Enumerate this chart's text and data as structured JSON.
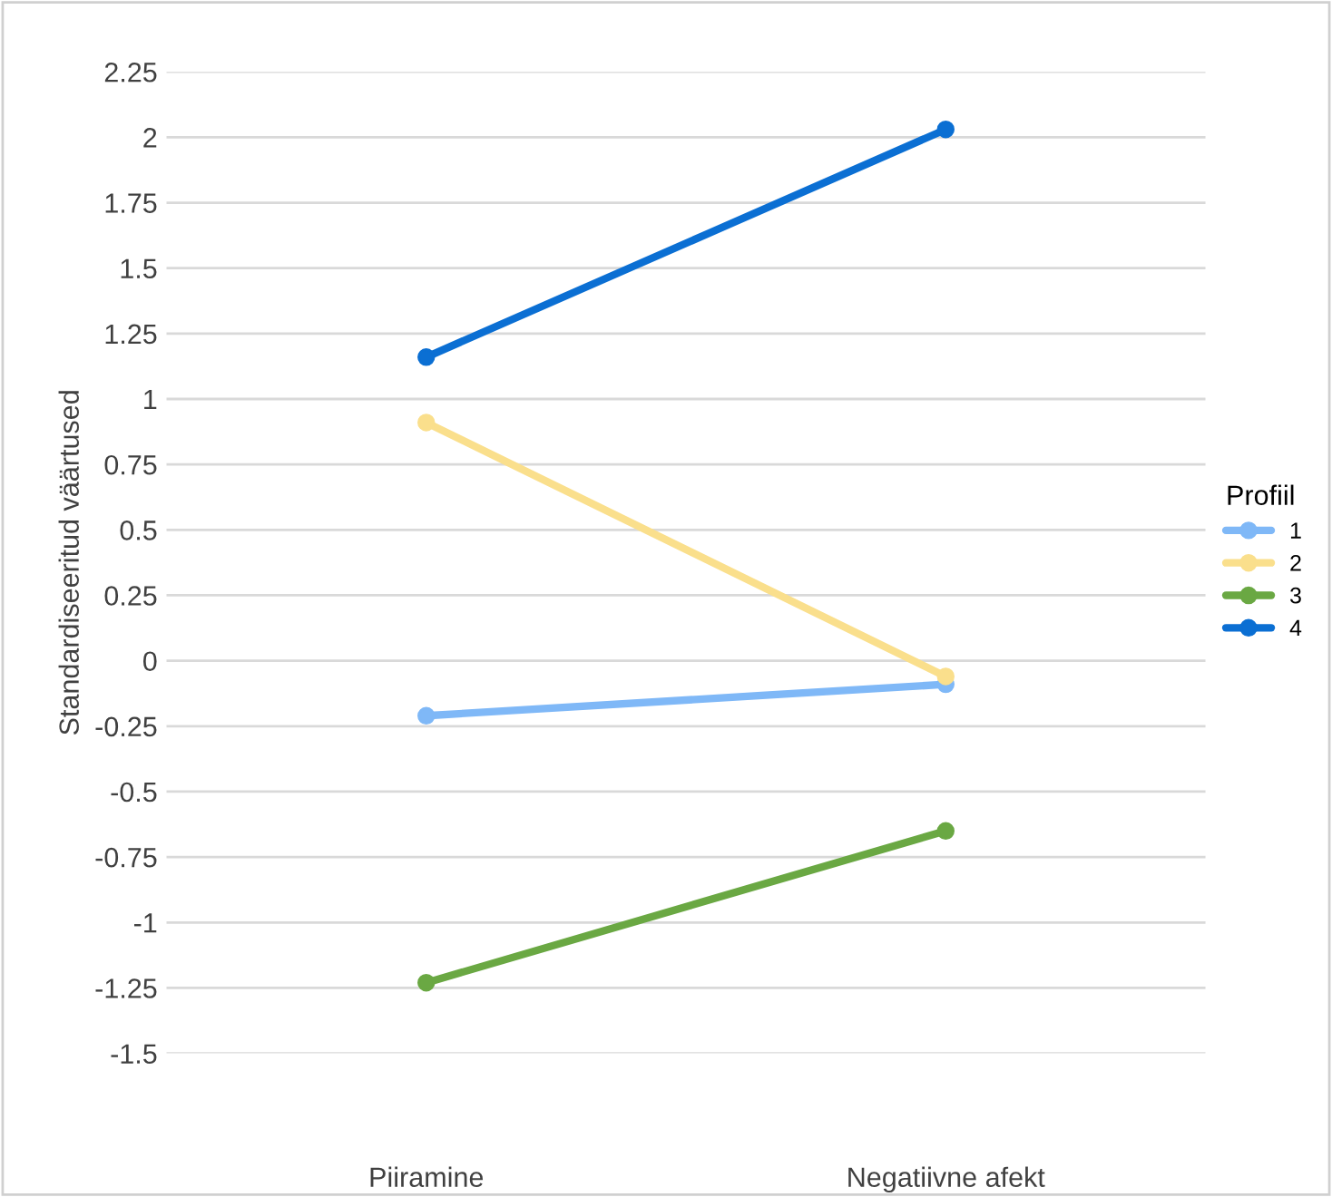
{
  "chart_data": {
    "type": "line",
    "ylabel": "Standardiseeritud väärtused",
    "legend_title": "Profiil",
    "legend": "right",
    "categories": [
      "Piiramine",
      "Negatiivne afekt"
    ],
    "series": [
      {
        "name": "1",
        "color": "#7fb8f7",
        "values": [
          -0.21,
          -0.09
        ]
      },
      {
        "name": "2",
        "color": "#fadf8c",
        "values": [
          0.91,
          -0.06
        ]
      },
      {
        "name": "3",
        "color": "#6aa843",
        "values": [
          -1.23,
          -0.65
        ]
      },
      {
        "name": "4",
        "color": "#0b6fd3",
        "values": [
          1.16,
          2.03
        ]
      }
    ],
    "ylim": [
      -1.5,
      2.25
    ],
    "yticks": [
      -1.5,
      -1.25,
      -1,
      -0.75,
      -0.5,
      -0.25,
      0,
      0.25,
      0.5,
      0.75,
      1,
      1.25,
      1.5,
      1.75,
      2,
      2.25
    ],
    "grid": "y",
    "marker": "circle",
    "line_style": "solid"
  }
}
